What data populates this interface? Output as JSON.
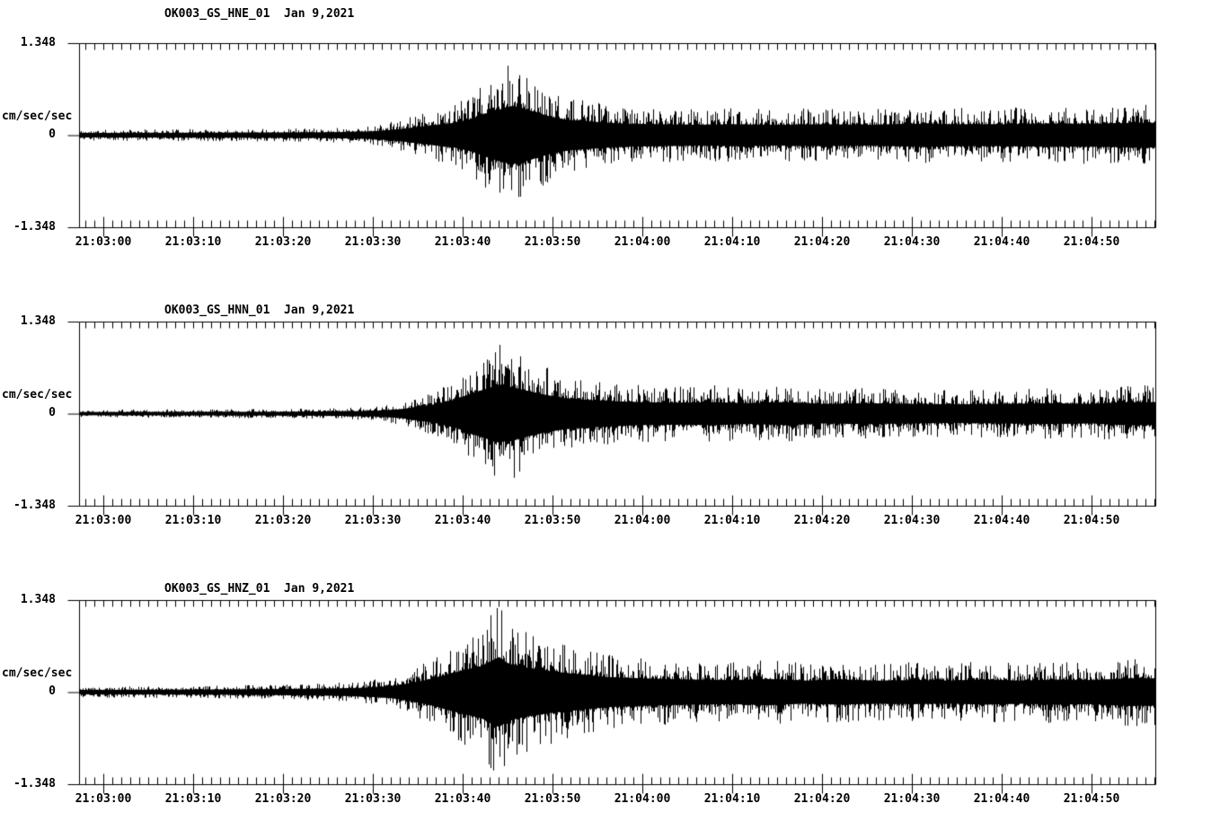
{
  "app": {
    "background_color": "#ffffff",
    "trace_color": "#000000",
    "axis_color": "#000000"
  },
  "chart_data": [
    {
      "type": "line",
      "title": "OK003_GS_HNE_01  Jan 9,2021",
      "station": "OK003",
      "network": "GS",
      "channel": "HNE",
      "location": "01",
      "date": "Jan 9,2021",
      "ylabel": "cm/sec/sec",
      "ylim": [
        -1.348,
        1.348
      ],
      "ytick_labels": [
        "1.348",
        "0",
        "-1.348"
      ],
      "xtick_labels": [
        "21:03:00",
        "21:03:10",
        "21:03:20",
        "21:03:30",
        "21:03:40",
        "21:03:50",
        "21:04:00",
        "21:04:10",
        "21:04:20",
        "21:04:30",
        "21:04:40",
        "21:04:50"
      ],
      "x_window_seconds": [
        -2.7,
        117.1
      ],
      "major_tick_interval_s": 10,
      "minor_tick_interval_s": 1,
      "grid": false,
      "legend": false,
      "envelope_units": "cm/sec/sec",
      "envelope": [
        [
          -2.7,
          0.08
        ],
        [
          0,
          0.08
        ],
        [
          10,
          0.09
        ],
        [
          20,
          0.1
        ],
        [
          26,
          0.11
        ],
        [
          30,
          0.14
        ],
        [
          33,
          0.22
        ],
        [
          35,
          0.3
        ],
        [
          37,
          0.38
        ],
        [
          39,
          0.45
        ],
        [
          41,
          0.6
        ],
        [
          43,
          0.85
        ],
        [
          45,
          1.02
        ],
        [
          46,
          1.05
        ],
        [
          47,
          0.95
        ],
        [
          48,
          0.85
        ],
        [
          50,
          0.65
        ],
        [
          52,
          0.55
        ],
        [
          55,
          0.48
        ],
        [
          58,
          0.42
        ],
        [
          62,
          0.4
        ],
        [
          66,
          0.38
        ],
        [
          70,
          0.4
        ],
        [
          75,
          0.38
        ],
        [
          80,
          0.4
        ],
        [
          85,
          0.38
        ],
        [
          90,
          0.42
        ],
        [
          95,
          0.4
        ],
        [
          100,
          0.4
        ],
        [
          105,
          0.42
        ],
        [
          110,
          0.42
        ],
        [
          115,
          0.45
        ],
        [
          117.1,
          0.45
        ]
      ],
      "seed": 11
    },
    {
      "type": "line",
      "title": "OK003_GS_HNN_01  Jan 9,2021",
      "station": "OK003",
      "network": "GS",
      "channel": "HNN",
      "location": "01",
      "date": "Jan 9,2021",
      "ylabel": "cm/sec/sec",
      "ylim": [
        -1.348,
        1.348
      ],
      "ytick_labels": [
        "1.348",
        "0",
        "-1.348"
      ],
      "xtick_labels": [
        "21:03:00",
        "21:03:10",
        "21:03:20",
        "21:03:30",
        "21:03:40",
        "21:03:50",
        "21:04:00",
        "21:04:10",
        "21:04:20",
        "21:04:30",
        "21:04:40",
        "21:04:50"
      ],
      "x_window_seconds": [
        -2.7,
        117.1
      ],
      "major_tick_interval_s": 10,
      "minor_tick_interval_s": 1,
      "grid": false,
      "legend": false,
      "envelope_units": "cm/sec/sec",
      "envelope": [
        [
          -2.7,
          0.06
        ],
        [
          0,
          0.06
        ],
        [
          10,
          0.065
        ],
        [
          20,
          0.07
        ],
        [
          26,
          0.08
        ],
        [
          30,
          0.1
        ],
        [
          33,
          0.16
        ],
        [
          35,
          0.25
        ],
        [
          37,
          0.35
        ],
        [
          39,
          0.5
        ],
        [
          41,
          0.75
        ],
        [
          43,
          0.95
        ],
        [
          44,
          1.05
        ],
        [
          45,
          1.0
        ],
        [
          47,
          0.85
        ],
        [
          49,
          0.7
        ],
        [
          51,
          0.58
        ],
        [
          54,
          0.5
        ],
        [
          57,
          0.45
        ],
        [
          60,
          0.42
        ],
        [
          64,
          0.4
        ],
        [
          68,
          0.42
        ],
        [
          72,
          0.38
        ],
        [
          76,
          0.42
        ],
        [
          80,
          0.36
        ],
        [
          85,
          0.38
        ],
        [
          90,
          0.36
        ],
        [
          95,
          0.34
        ],
        [
          100,
          0.36
        ],
        [
          105,
          0.38
        ],
        [
          110,
          0.36
        ],
        [
          114,
          0.42
        ],
        [
          117.1,
          0.42
        ]
      ],
      "seed": 22
    },
    {
      "type": "line",
      "title": "OK003_GS_HNZ_01  Jan 9,2021",
      "station": "OK003",
      "network": "GS",
      "channel": "HNZ",
      "location": "01",
      "date": "Jan 9,2021",
      "ylabel": "cm/sec/sec",
      "ylim": [
        -1.348,
        1.348
      ],
      "ytick_labels": [
        "1.348",
        "0",
        "-1.348"
      ],
      "xtick_labels": [
        "21:03:00",
        "21:03:10",
        "21:03:20",
        "21:03:30",
        "21:03:40",
        "21:03:50",
        "21:04:00",
        "21:04:10",
        "21:04:20",
        "21:04:30",
        "21:04:40",
        "21:04:50"
      ],
      "x_window_seconds": [
        -2.7,
        117.1
      ],
      "major_tick_interval_s": 10,
      "minor_tick_interval_s": 1,
      "grid": false,
      "legend": false,
      "envelope_units": "cm/sec/sec",
      "envelope": [
        [
          -2.7,
          0.08
        ],
        [
          0,
          0.08
        ],
        [
          10,
          0.09
        ],
        [
          20,
          0.11
        ],
        [
          25,
          0.13
        ],
        [
          29,
          0.16
        ],
        [
          32,
          0.22
        ],
        [
          34,
          0.32
        ],
        [
          36,
          0.45
        ],
        [
          38,
          0.62
        ],
        [
          40,
          0.8
        ],
        [
          42,
          0.95
        ],
        [
          44,
          1.28
        ],
        [
          45,
          1.05
        ],
        [
          47,
          0.9
        ],
        [
          50,
          0.75
        ],
        [
          53,
          0.65
        ],
        [
          56,
          0.55
        ],
        [
          60,
          0.5
        ],
        [
          65,
          0.46
        ],
        [
          70,
          0.44
        ],
        [
          74,
          0.48
        ],
        [
          78,
          0.42
        ],
        [
          82,
          0.46
        ],
        [
          86,
          0.42
        ],
        [
          90,
          0.44
        ],
        [
          94,
          0.42
        ],
        [
          98,
          0.46
        ],
        [
          102,
          0.42
        ],
        [
          106,
          0.46
        ],
        [
          110,
          0.44
        ],
        [
          114,
          0.5
        ],
        [
          117.1,
          0.5
        ]
      ],
      "seed": 33
    }
  ]
}
